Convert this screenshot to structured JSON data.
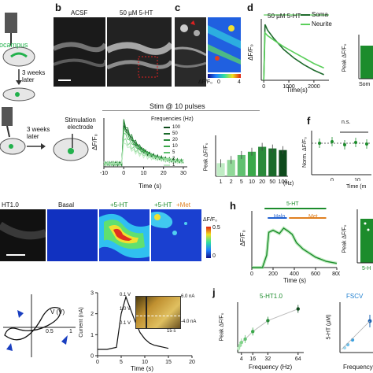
{
  "panel_labels": {
    "b": "b",
    "c": "c",
    "d": "d",
    "f": "f",
    "h": "h",
    "j": "j"
  },
  "row1": {
    "schematic_a": {
      "region": "hippocampus",
      "timeline": "3 weeks later"
    },
    "b": {
      "left_title": "ACSF",
      "right_title": "50 µM 5-HT"
    },
    "c": {
      "colorbar_label": "ΔF/F₀",
      "cb_min": "0",
      "cb_max": "4"
    },
    "d": {
      "annotation": "50 µM 5-HT",
      "ylabel": "ΔF/F₀",
      "xlabel": "Time(s)",
      "legend": [
        "Soma",
        "Neurite"
      ],
      "xticks": [
        "0",
        "1000",
        "2000"
      ]
    },
    "d_bar": {
      "ylabel": "Peak ΔF/F₀",
      "xtick": "Som"
    }
  },
  "row2": {
    "schematic_e": {
      "timeline": "3 weeks later",
      "electrode": "Stimulation electrode"
    },
    "stim_title": "Stim @ 10 pulses",
    "trace": {
      "ylabel": "ΔF/F₀",
      "xlabel": "Time (s)",
      "xticks": [
        "-10",
        "0",
        "10",
        "20",
        "30"
      ],
      "legend_title": "Frequencies (Hz)",
      "legend": [
        "100",
        "50",
        "20",
        "10",
        "5",
        "2",
        "1"
      ]
    },
    "bar": {
      "ylabel": "Peak ΔF/F₀",
      "unit": "(Hz)"
    },
    "f": {
      "ylabel": "Norm. ΔF/F₀",
      "ns": "n.s.",
      "xticks": [
        "0",
        "10"
      ],
      "xlabel": "Time (m"
    }
  },
  "row3": {
    "imgs": {
      "first": "HT1.0",
      "basal": "Basal",
      "ht": "+5-HT",
      "ht_met_a": "+5-HT",
      "ht_met_b": "+Met"
    },
    "colorbar": {
      "label": "ΔF/F₀",
      "max": "0.5",
      "min": "0"
    },
    "h": {
      "top_label": "5-HT",
      "halo": "Halo",
      "met": "Met",
      "ylabel": "ΔF/F₀",
      "xlabel": "Time (s)",
      "xticks": [
        "0",
        "200",
        "400",
        "600",
        "800"
      ]
    },
    "h_bar": {
      "ylabel": "Peak ΔF/F₀",
      "xtick": "5-H"
    }
  },
  "row4": {
    "cv": {
      "xlabel": "V (V)",
      "ticks": [
        "0.5",
        "1"
      ]
    },
    "current": {
      "ylabel": "Current (nA)",
      "xlabel": "Time (s)",
      "xticks": [
        "0",
        "5",
        "10",
        "15",
        "20"
      ],
      "yticks": [
        "0",
        "1",
        "2",
        "3"
      ],
      "inset_v": [
        "0.1 V",
        "1.0 V",
        "0.1 V"
      ],
      "inset_i": [
        "6.0 nA",
        "-4.0 nA"
      ],
      "inset_t": "15 s"
    },
    "j1": {
      "title": "5-HT1.0",
      "ylabel": "Peak ΔF/F₀",
      "xlabel": "Frequency (Hz)",
      "xticks": [
        "4",
        "16",
        "32",
        "64"
      ]
    },
    "j2": {
      "title": "FSCV",
      "ylabel": "5-HT (µM)",
      "xlabel": "Frequency"
    }
  },
  "chart_data": [
    {
      "type": "line",
      "title": "",
      "xlabel": "Time(s)",
      "ylabel": "ΔF/F₀",
      "xlim": [
        -100,
        2600
      ],
      "series": [
        {
          "name": "Soma",
          "x": [
            0,
            50,
            150,
            400,
            800,
            1200,
            1600,
            2000,
            2400
          ],
          "y": [
            0.0,
            1.0,
            0.9,
            0.75,
            0.55,
            0.4,
            0.28,
            0.18,
            0.1
          ]
        },
        {
          "name": "Neurite",
          "x": [
            0,
            50,
            150,
            400,
            800,
            1200,
            1600,
            2000,
            2400
          ],
          "y": [
            0.0,
            0.85,
            0.8,
            0.72,
            0.6,
            0.5,
            0.4,
            0.3,
            0.22
          ]
        }
      ]
    },
    {
      "type": "bar",
      "title": "",
      "xlabel": "(Hz)",
      "ylabel": "Peak ΔF/F₀",
      "categories": [
        "1",
        "2",
        "5",
        "10",
        "20",
        "50",
        "100"
      ],
      "values": [
        0.08,
        0.1,
        0.13,
        0.15,
        0.18,
        0.17,
        0.16
      ],
      "ylim": [
        0,
        0.25
      ]
    },
    {
      "type": "bar",
      "title": "",
      "xlabel": "",
      "ylabel": "Peak ΔF/F₀",
      "categories": [
        "1",
        "2",
        "5",
        "10",
        "20",
        "50",
        "100"
      ],
      "values": [
        0.08,
        0.1,
        0.13,
        0.15,
        0.18,
        0.17,
        0.16
      ]
    },
    {
      "type": "line",
      "title": "",
      "xlabel": "Time (s)",
      "ylabel": "ΔF/F₀",
      "xlim": [
        0,
        800
      ],
      "series": [
        {
          "name": "",
          "x": [
            0,
            100,
            140,
            160,
            200,
            260,
            300,
            340,
            380,
            420,
            480,
            540,
            600,
            700,
            800
          ],
          "y": [
            0.0,
            0.0,
            0.3,
            0.85,
            0.9,
            0.82,
            0.95,
            0.88,
            0.8,
            0.6,
            0.45,
            0.35,
            0.25,
            0.15,
            0.1
          ]
        }
      ]
    },
    {
      "type": "scatter",
      "title": "5-HT1.0",
      "xlabel": "Frequency (Hz)",
      "ylabel": "Peak ΔF/F₀",
      "series": [
        {
          "name": "",
          "x": [
            1,
            2,
            4,
            8,
            16,
            32,
            64
          ],
          "y": [
            0.05,
            0.08,
            0.12,
            0.16,
            0.25,
            0.38,
            0.52
          ]
        }
      ]
    },
    {
      "type": "line",
      "title": "",
      "xlabel": "Time (s)",
      "ylabel": "Current (nA)",
      "xlim": [
        0,
        20
      ],
      "ylim": [
        0,
        3
      ],
      "series": [
        {
          "name": "",
          "x": [
            0,
            2,
            4,
            5,
            6,
            7,
            8,
            9,
            10,
            11,
            12,
            13,
            14,
            15
          ],
          "y": [
            0.3,
            0.3,
            0.4,
            2.0,
            2.8,
            2.2,
            1.6,
            1.1,
            0.8,
            0.6,
            0.5,
            0.45,
            0.4,
            0.35
          ]
        }
      ]
    }
  ]
}
